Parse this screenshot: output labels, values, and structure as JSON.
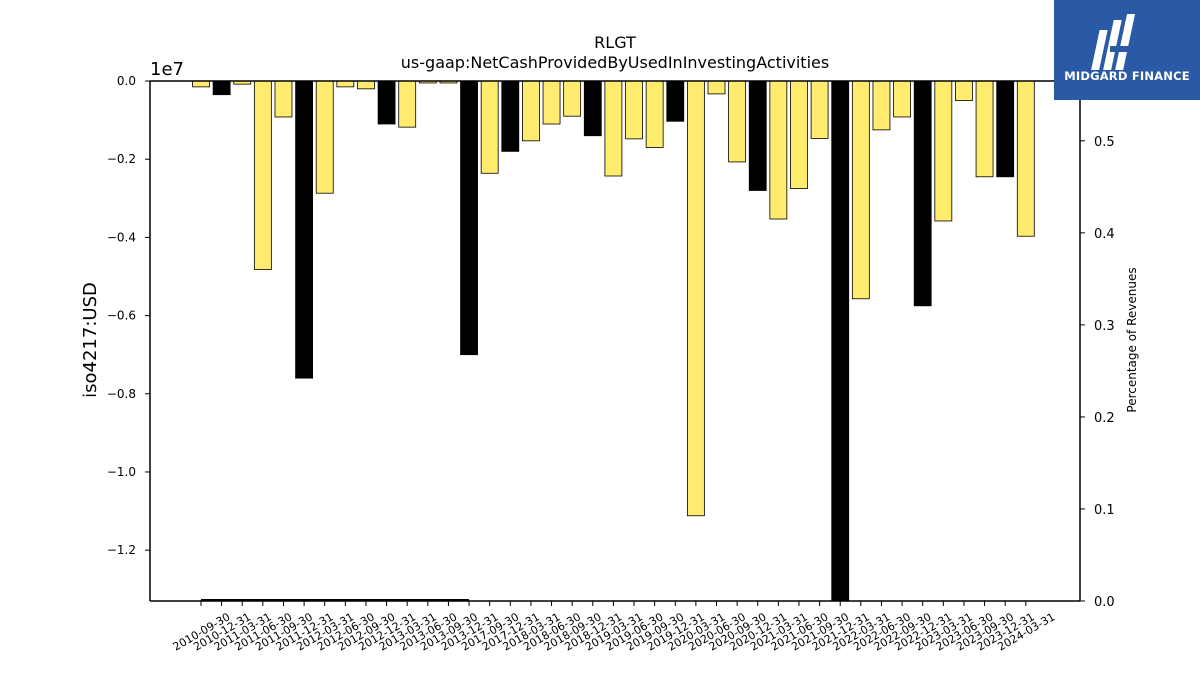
{
  "header": {
    "title": "RLGT",
    "subtitle": "us-gaap:NetCashProvidedByUsedInInvestingActivities"
  },
  "logo": {
    "text": "MIDGARD FINANCE",
    "icon": "midgard-logo-icon",
    "background": "#2a5aa6"
  },
  "colors": {
    "yellow_bar": "#ffec6e",
    "black_bar": "#000000"
  },
  "chart_data": {
    "type": "bar",
    "ylabel": "iso4217:USD",
    "y_offset_label": "1e7",
    "ylim": [
      -1.33,
      0.0
    ],
    "y_ticks": [
      "0.0",
      "−0.2",
      "−0.4",
      "−0.6",
      "−0.8",
      "−1.0",
      "−1.2"
    ],
    "y2label": "Percentage of Revenues",
    "y2lim": [
      0.0,
      0.565
    ],
    "y2_ticks": [
      "0.0",
      "0.1",
      "0.2",
      "0.3",
      "0.4",
      "0.5"
    ],
    "categories": [
      "2010-09-30",
      "2010-12-31",
      "2011-03-31",
      "2011-06-30",
      "2011-09-30",
      "2011-12-31",
      "2012-03-31",
      "2012-06-30",
      "2012-09-30",
      "2012-12-31",
      "2013-03-31",
      "2013-06-30",
      "2013-09-30",
      "2013-12-31",
      "2017-09-30",
      "2017-12-31",
      "2018-03-31",
      "2018-06-30",
      "2018-09-30",
      "2018-12-31",
      "2019-03-31",
      "2019-06-30",
      "2019-09-30",
      "2019-12-31",
      "2020-03-31",
      "2020-06-30",
      "2020-09-30",
      "2020-12-31",
      "2021-03-31",
      "2021-06-30",
      "2021-09-30",
      "2021-12-31",
      "2022-03-31",
      "2022-06-30",
      "2022-09-30",
      "2022-12-31",
      "2023-03-31",
      "2023-06-30",
      "2023-09-30",
      "2023-12-31",
      "2024-03-31"
    ],
    "values": [
      -0.015,
      -0.035,
      -0.008,
      -0.482,
      -0.092,
      -0.76,
      -0.287,
      -0.015,
      -0.02,
      -0.11,
      -0.118,
      -0.005,
      -0.005,
      -0.7,
      -0.236,
      -0.18,
      -0.153,
      -0.11,
      -0.09,
      -0.14,
      -0.243,
      -0.148,
      -0.17,
      -0.103,
      -1.112,
      -0.033,
      -0.207,
      -0.28,
      -0.353,
      -0.275,
      -0.147,
      -1.33,
      -0.557,
      -0.125,
      -0.092,
      -0.575,
      -0.358,
      -0.05,
      -0.245,
      -0.245,
      -0.397
    ],
    "bar_colors": [
      "yellow",
      "black",
      "yellow",
      "yellow",
      "yellow",
      "black",
      "yellow",
      "yellow",
      "yellow",
      "black",
      "yellow",
      "yellow",
      "yellow",
      "black",
      "yellow",
      "black",
      "yellow",
      "yellow",
      "yellow",
      "black",
      "yellow",
      "yellow",
      "yellow",
      "black",
      "yellow",
      "yellow",
      "yellow",
      "black",
      "yellow",
      "yellow",
      "yellow",
      "black",
      "yellow",
      "yellow",
      "yellow",
      "black",
      "yellow",
      "yellow",
      "yellow",
      "black",
      "yellow"
    ],
    "ratio_line": {
      "from_category": "2010-09-30",
      "to_category": "2013-12-31",
      "value": 0.0
    },
    "grid": false
  }
}
